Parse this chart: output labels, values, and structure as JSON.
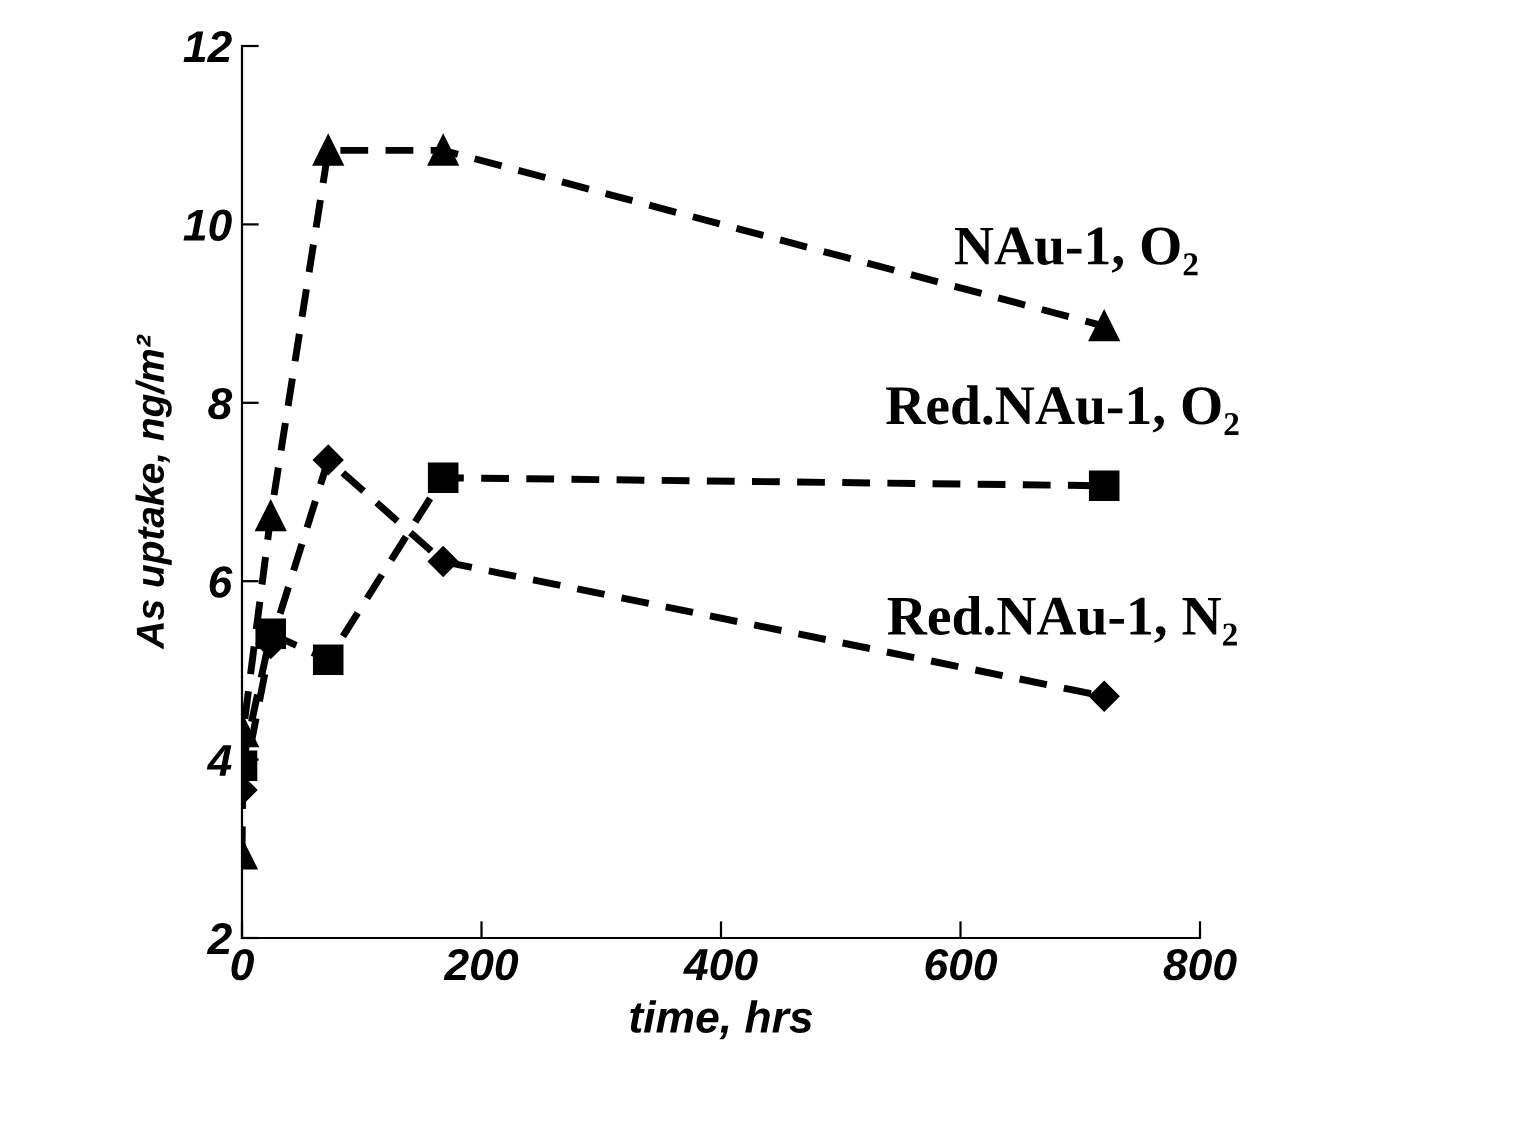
{
  "chart_data": {
    "type": "line",
    "xlabel": "time, hrs",
    "ylabel": "As uptake, ng/m²",
    "xlim": [
      0,
      800
    ],
    "xticks": [
      0,
      200,
      400,
      600,
      800
    ],
    "ylim": [
      2,
      12
    ],
    "yticks": [
      2,
      4,
      6,
      8,
      10,
      12
    ],
    "grid": false,
    "legend": false,
    "line_style": "dashed",
    "series": [
      {
        "name": "NAu-1, O₂",
        "color": "#000000",
        "marker": "triangle",
        "x": [
          0,
          1,
          24,
          72,
          168,
          720
        ],
        "values": [
          2.94,
          4.31,
          6.73,
          10.83,
          10.83,
          8.86
        ]
      },
      {
        "name": "Red.NAu-1, O₂",
        "color": "#000000",
        "marker": "square",
        "x": [
          0,
          24,
          72,
          168,
          720
        ],
        "values": [
          3.93,
          5.41,
          5.12,
          7.16,
          7.07
        ]
      },
      {
        "name": "Red.NAu-1, N₂",
        "color": "#000000",
        "marker": "diamond",
        "x": [
          0,
          24,
          72,
          168,
          720
        ],
        "values": [
          3.66,
          5.3,
          7.36,
          6.22,
          4.71
        ]
      }
    ]
  }
}
